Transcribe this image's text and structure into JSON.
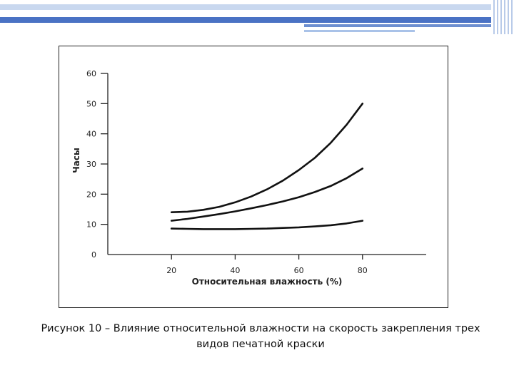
{
  "colors": {
    "header_bar": "#4a72c4",
    "header_light": "#a9c2e8",
    "curve": "#111111",
    "axis": "#222222"
  },
  "caption": {
    "line1": "Рисунок 10 – Влияние относительной влажности на скорость закрепления трех",
    "line2": "видов печатной краски"
  },
  "chart_data": {
    "type": "line",
    "xlabel": "Относительная влажность (%)",
    "ylabel": "Часы",
    "xlim": [
      0,
      100
    ],
    "ylim": [
      0,
      60
    ],
    "x_ticks": [
      20,
      40,
      60,
      80
    ],
    "y_ticks": [
      0,
      10,
      20,
      30,
      40,
      50,
      60
    ],
    "grid": false,
    "legend": "none",
    "series": [
      {
        "x": [
          20,
          25,
          30,
          35,
          40,
          45,
          50,
          55,
          60,
          65,
          70,
          75,
          80
        ],
        "values": [
          14,
          14.2,
          14.8,
          15.8,
          17.3,
          19.2,
          21.6,
          24.5,
          28,
          32,
          37,
          43,
          50
        ]
      },
      {
        "x": [
          20,
          25,
          30,
          35,
          40,
          45,
          50,
          55,
          60,
          65,
          70,
          75,
          80
        ],
        "values": [
          11.2,
          11.8,
          12.6,
          13.4,
          14.3,
          15.3,
          16.4,
          17.6,
          19,
          20.7,
          22.7,
          25.3,
          28.5
        ]
      },
      {
        "x": [
          20,
          25,
          30,
          35,
          40,
          45,
          50,
          55,
          60,
          65,
          70,
          75,
          80
        ],
        "values": [
          8.6,
          8.5,
          8.4,
          8.4,
          8.4,
          8.5,
          8.6,
          8.8,
          9,
          9.3,
          9.7,
          10.3,
          11.2
        ]
      }
    ]
  }
}
